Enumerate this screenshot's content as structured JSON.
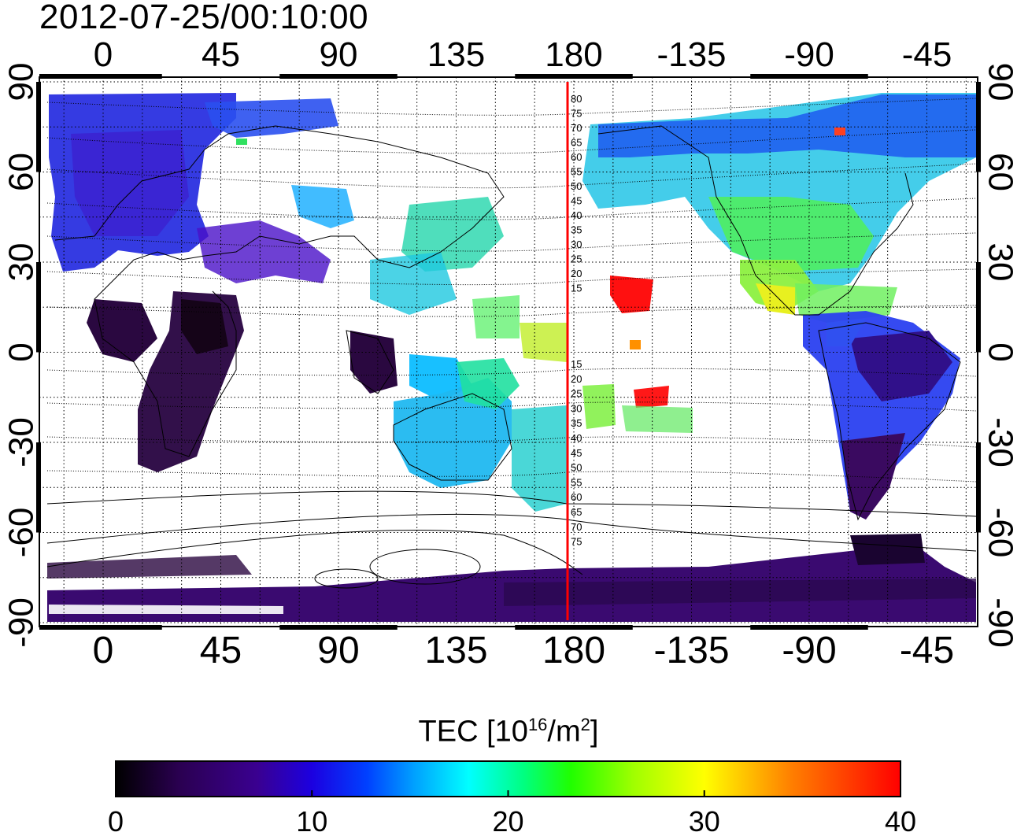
{
  "title": "2012-07-25/00:10:00",
  "map": {
    "lon_ticks": [
      "0",
      "45",
      "90",
      "135",
      "180",
      "-135",
      "-90",
      "-45"
    ],
    "lat_ticks": [
      "90",
      "60",
      "30",
      "0",
      "-30",
      "-60",
      "-90"
    ],
    "terminator_lon": 180,
    "terminator_color": "#ff0000",
    "terminator_labels": [
      "80",
      "75",
      "70",
      "65",
      "60",
      "55",
      "50",
      "45",
      "40",
      "35",
      "30",
      "25",
      "20",
      "15",
      "15",
      "20",
      "25",
      "30",
      "35",
      "40",
      "45",
      "50",
      "55",
      "60",
      "65",
      "70",
      "75"
    ]
  },
  "colorbar": {
    "title_main": "TEC  [10",
    "title_exp": "16",
    "title_unit": "/m",
    "title_unit_exp": "2",
    "title_close": "]",
    "min": 0,
    "max": 40,
    "tick_labels": [
      "0",
      "10",
      "20",
      "30",
      "40"
    ],
    "colors": [
      "#000000",
      "#2a0060",
      "#1c00c8",
      "#0040ff",
      "#00a0ff",
      "#00ffff",
      "#00ff60",
      "#60ff00",
      "#ffff00",
      "#ff8000",
      "#ff0000"
    ]
  }
}
